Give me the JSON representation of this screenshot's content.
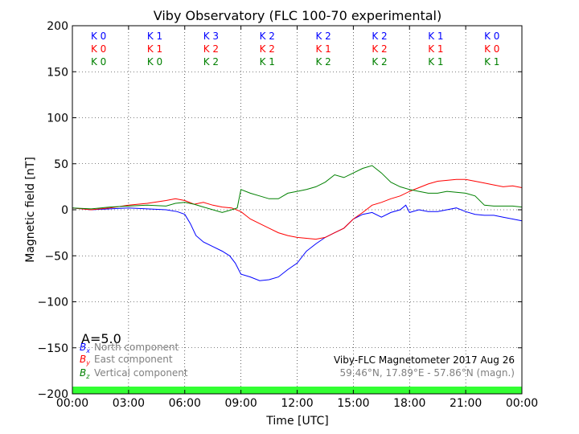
{
  "chart_data": {
    "type": "line",
    "title": "Viby Observatory (FLC 100-70 experimental)",
    "xlabel": "Time [UTC]",
    "ylabel": "Magnetic field [nT]",
    "xlim": [
      0,
      24
    ],
    "ylim": [
      -200,
      200
    ],
    "xticks": [
      0,
      3,
      6,
      9,
      12,
      15,
      18,
      21,
      24
    ],
    "xtick_labels": [
      "00:00",
      "03:00",
      "06:00",
      "09:00",
      "12:00",
      "15:00",
      "18:00",
      "21:00",
      "00:00"
    ],
    "yticks": [
      -200,
      -150,
      -100,
      -50,
      0,
      50,
      100,
      150,
      200
    ],
    "ytick_labels": [
      "−200",
      "−150",
      "−100",
      "−50",
      "0",
      "50",
      "100",
      "150",
      "200"
    ],
    "grid": true,
    "a_index": "A=5.0",
    "k_indices": {
      "blue": [
        "K 0",
        "K 1",
        "K 3",
        "K 2",
        "K 2",
        "K 2",
        "K 1",
        "K 0"
      ],
      "red": [
        "K 0",
        "K 1",
        "K 2",
        "K 2",
        "K 1",
        "K 2",
        "K 1",
        "K 0"
      ],
      "green": [
        "K 0",
        "K 0",
        "K 2",
        "K 1",
        "K 2",
        "K 2",
        "K 1",
        "K 1"
      ]
    },
    "legend": [
      {
        "symbol": "B",
        "sub": "x",
        "text": "North component",
        "color": "#0000ff"
      },
      {
        "symbol": "B",
        "sub": "y",
        "text": "East component",
        "color": "#ff0000"
      },
      {
        "symbol": "B",
        "sub": "z",
        "text": "Vertical component",
        "color": "#008000"
      }
    ],
    "legend_position": "bottom-left",
    "info_line1": "Viby-FLC Magnetometer 2017 Aug 26",
    "info_line2": "59.46°N, 17.89°E - 57.86°N (magn.)",
    "activity_band_color": "#33ff33",
    "series": [
      {
        "color": "#0000ff",
        "points": [
          [
            0,
            2
          ],
          [
            1,
            0
          ],
          [
            2,
            1
          ],
          [
            3,
            2
          ],
          [
            4,
            1
          ],
          [
            5,
            0
          ],
          [
            5.6,
            -2
          ],
          [
            6,
            -5
          ],
          [
            6.3,
            -15
          ],
          [
            6.6,
            -28
          ],
          [
            7,
            -35
          ],
          [
            7.5,
            -40
          ],
          [
            8,
            -45
          ],
          [
            8.4,
            -50
          ],
          [
            8.7,
            -58
          ],
          [
            9,
            -70
          ],
          [
            9.5,
            -73
          ],
          [
            10,
            -77
          ],
          [
            10.5,
            -76
          ],
          [
            11,
            -73
          ],
          [
            11.5,
            -65
          ],
          [
            12,
            -58
          ],
          [
            12.5,
            -45
          ],
          [
            13,
            -37
          ],
          [
            13.5,
            -30
          ],
          [
            14,
            -25
          ],
          [
            14.5,
            -20
          ],
          [
            15,
            -10
          ],
          [
            15.5,
            -5
          ],
          [
            16,
            -3
          ],
          [
            16.5,
            -8
          ],
          [
            17,
            -3
          ],
          [
            17.5,
            0
          ],
          [
            17.8,
            5
          ],
          [
            18,
            -3
          ],
          [
            18.5,
            0
          ],
          [
            19,
            -2
          ],
          [
            19.5,
            -2
          ],
          [
            20,
            0
          ],
          [
            20.5,
            2
          ],
          [
            21,
            -2
          ],
          [
            21.5,
            -5
          ],
          [
            22,
            -6
          ],
          [
            22.5,
            -6
          ],
          [
            23,
            -8
          ],
          [
            23.5,
            -10
          ],
          [
            24,
            -12
          ]
        ]
      },
      {
        "color": "#ff0000",
        "points": [
          [
            0,
            2
          ],
          [
            1,
            0
          ],
          [
            2,
            2
          ],
          [
            3,
            5
          ],
          [
            4,
            7
          ],
          [
            5,
            10
          ],
          [
            5.5,
            12
          ],
          [
            6,
            10
          ],
          [
            6.5,
            6
          ],
          [
            7,
            8
          ],
          [
            7.5,
            5
          ],
          [
            8,
            3
          ],
          [
            8.5,
            2
          ],
          [
            9,
            -2
          ],
          [
            9.5,
            -10
          ],
          [
            10,
            -15
          ],
          [
            10.5,
            -20
          ],
          [
            11,
            -25
          ],
          [
            11.5,
            -28
          ],
          [
            12,
            -30
          ],
          [
            12.5,
            -31
          ],
          [
            13,
            -32
          ],
          [
            13.5,
            -30
          ],
          [
            14,
            -25
          ],
          [
            14.5,
            -20
          ],
          [
            15,
            -10
          ],
          [
            15.5,
            -3
          ],
          [
            16,
            5
          ],
          [
            16.5,
            8
          ],
          [
            17,
            12
          ],
          [
            17.5,
            15
          ],
          [
            18,
            20
          ],
          [
            18.5,
            24
          ],
          [
            19,
            28
          ],
          [
            19.5,
            31
          ],
          [
            20,
            32
          ],
          [
            20.5,
            33
          ],
          [
            21,
            33
          ],
          [
            21.5,
            31
          ],
          [
            22,
            29
          ],
          [
            22.5,
            27
          ],
          [
            23,
            25
          ],
          [
            23.5,
            26
          ],
          [
            24,
            24
          ]
        ]
      },
      {
        "color": "#008000",
        "points": [
          [
            0,
            2
          ],
          [
            1,
            1
          ],
          [
            2,
            3
          ],
          [
            3,
            4
          ],
          [
            4,
            5
          ],
          [
            5,
            4
          ],
          [
            5.5,
            7
          ],
          [
            6,
            8
          ],
          [
            6.5,
            6
          ],
          [
            7,
            3
          ],
          [
            7.5,
            0
          ],
          [
            8,
            -3
          ],
          [
            8.5,
            0
          ],
          [
            8.8,
            2
          ],
          [
            9,
            22
          ],
          [
            9.5,
            18
          ],
          [
            10,
            15
          ],
          [
            10.5,
            12
          ],
          [
            11,
            12
          ],
          [
            11.5,
            18
          ],
          [
            12,
            20
          ],
          [
            12.5,
            22
          ],
          [
            13,
            25
          ],
          [
            13.5,
            30
          ],
          [
            14,
            38
          ],
          [
            14.5,
            35
          ],
          [
            15,
            40
          ],
          [
            15.5,
            45
          ],
          [
            16,
            48
          ],
          [
            16.5,
            40
          ],
          [
            17,
            30
          ],
          [
            17.5,
            25
          ],
          [
            18,
            22
          ],
          [
            18.5,
            20
          ],
          [
            19,
            18
          ],
          [
            19.5,
            18
          ],
          [
            20,
            20
          ],
          [
            20.5,
            19
          ],
          [
            21,
            18
          ],
          [
            21.5,
            15
          ],
          [
            22,
            5
          ],
          [
            22.5,
            4
          ],
          [
            23,
            4
          ],
          [
            23.5,
            4
          ],
          [
            24,
            3
          ]
        ]
      }
    ]
  }
}
